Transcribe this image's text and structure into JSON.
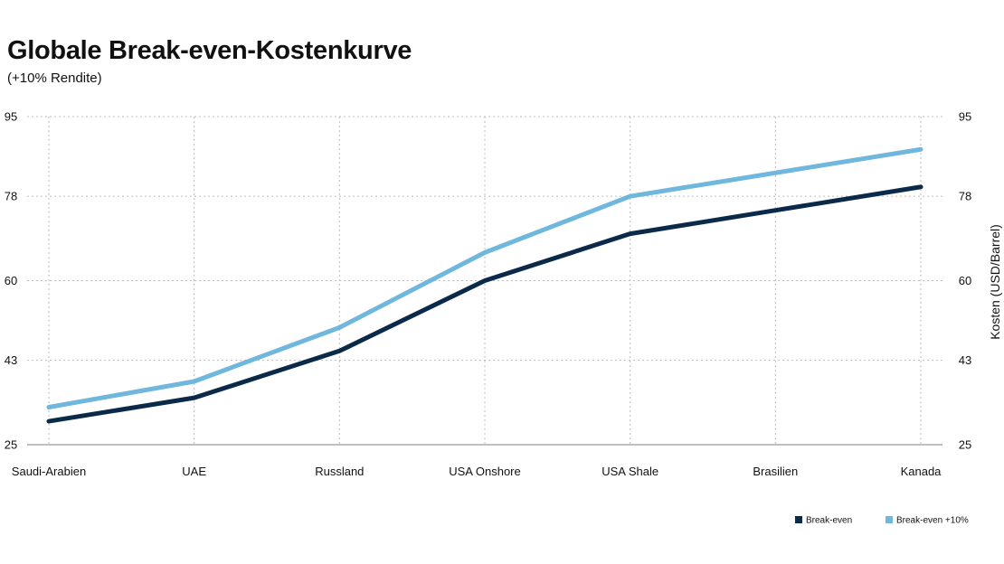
{
  "chart_data": {
    "type": "line",
    "title": "Globale Break-even-Kostenkurve",
    "subtitle": "(+10% Rendite)",
    "categories": [
      "Saudi-Arabien",
      "UAE",
      "Russland",
      "USA Onshore",
      "USA Shale",
      "Brasilien",
      "Kanada"
    ],
    "series": [
      {
        "name": "Break-even",
        "color": "#0b2a4a",
        "values": [
          30,
          35,
          45,
          60,
          70,
          75,
          80
        ]
      },
      {
        "name": "Break-even +10%",
        "color": "#6fb7dc",
        "values": [
          33,
          38.5,
          50,
          66,
          78,
          83,
          88
        ]
      }
    ],
    "xlabel": "",
    "ylabel": "",
    "y2label": "Kosten (USD/Barrel)",
    "ylim": [
      25,
      95
    ],
    "yticks": [
      "25",
      "43",
      "60",
      "78",
      "95"
    ],
    "grid": true,
    "legend_position": "bottom-right"
  }
}
